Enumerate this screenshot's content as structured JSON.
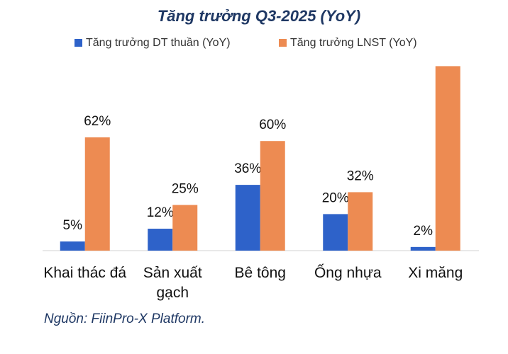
{
  "chart_data": {
    "type": "bar",
    "title": "Tăng trưởng Q3-2025 (YoY)",
    "categories": [
      "Khai thác đá",
      "Sản xuất gạch",
      "Bê tông",
      "Ống nhựa",
      "Xi măng"
    ],
    "series": [
      {
        "name": "Tăng trưởng DT thuần (YoY)",
        "color": "#2e62c9",
        "values": [
          5,
          12,
          36,
          20,
          2
        ],
        "value_labels": [
          "5%",
          "12%",
          "36%",
          "20%",
          "2%"
        ]
      },
      {
        "name": "Tăng trưởng LNST (YoY)",
        "color": "#ed8b52",
        "values": [
          62,
          25,
          60,
          32,
          101
        ],
        "value_labels": [
          "62%",
          "25%",
          "60%",
          "32%",
          null
        ]
      }
    ],
    "source": "Nguồn: FiinPro-X Platform."
  }
}
